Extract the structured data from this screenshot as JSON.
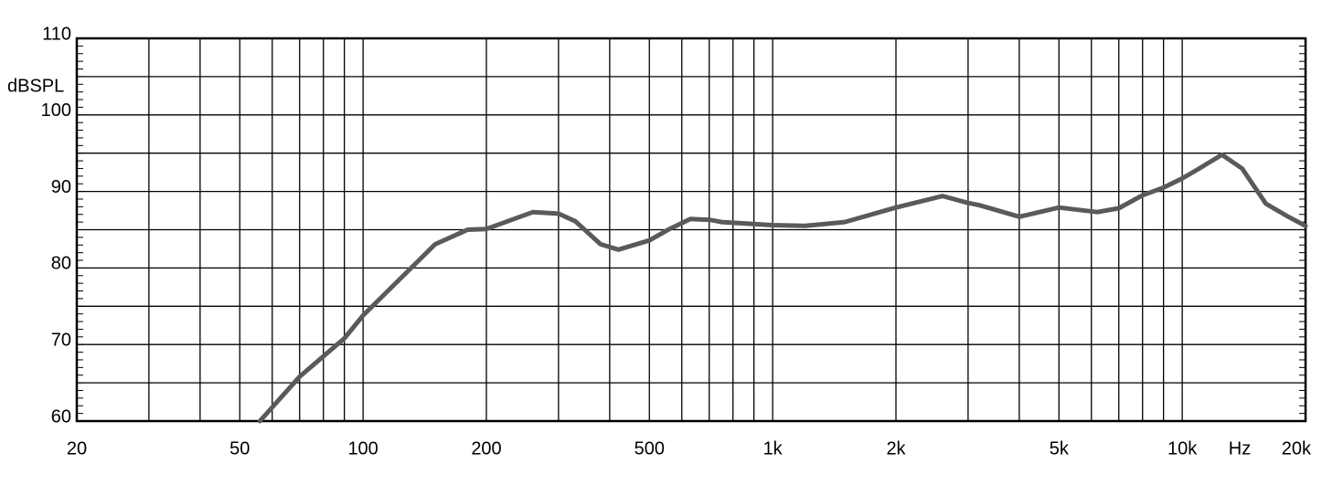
{
  "chart_data": {
    "type": "line",
    "y_label": "dBSPL",
    "x_unit_label": "Hz",
    "log_x": true,
    "grid": true,
    "xlim": [
      20,
      20000
    ],
    "ylim": [
      60,
      110
    ],
    "xticks": [
      20,
      50,
      100,
      200,
      500,
      {
        "value": 1000,
        "label": "1k"
      },
      {
        "value": 2000,
        "label": "2k"
      },
      {
        "value": 5000,
        "label": "5k"
      },
      {
        "value": 10000,
        "label": "10k"
      },
      {
        "value": 20000,
        "label": "20k"
      }
    ],
    "xgrid": [
      30,
      40,
      60,
      70,
      80,
      90,
      300,
      400,
      600,
      700,
      800,
      900,
      3000,
      4000,
      6000,
      7000,
      8000,
      9000
    ],
    "yticks": [
      60,
      70,
      80,
      90,
      100,
      110
    ],
    "ygrid": [
      65,
      75,
      85,
      95,
      105
    ],
    "yminor_step": 1,
    "series": [
      {
        "color": "#5a5a5a",
        "x": [
          56,
          70,
          90,
          100,
          150,
          180,
          200,
          260,
          300,
          330,
          380,
          420,
          500,
          560,
          630,
          700,
          750,
          1000,
          1200,
          1500,
          2000,
          2600,
          3000,
          3200,
          4000,
          5000,
          6200,
          7000,
          8000,
          9000,
          10000,
          11000,
          12500,
          14000,
          16000,
          18000,
          20000
        ],
        "values": [
          60,
          65.8,
          70.8,
          73.8,
          83.1,
          85,
          85.1,
          87.3,
          87.1,
          86.1,
          83.1,
          82.4,
          83.6,
          85.1,
          86.4,
          86.3,
          86,
          85.6,
          85.5,
          86,
          87.9,
          89.4,
          88.5,
          88.2,
          86.7,
          87.9,
          87.3,
          87.8,
          89.5,
          90.5,
          91.7,
          93,
          94.8,
          93,
          88.4,
          86.8,
          85.5
        ]
      }
    ]
  }
}
